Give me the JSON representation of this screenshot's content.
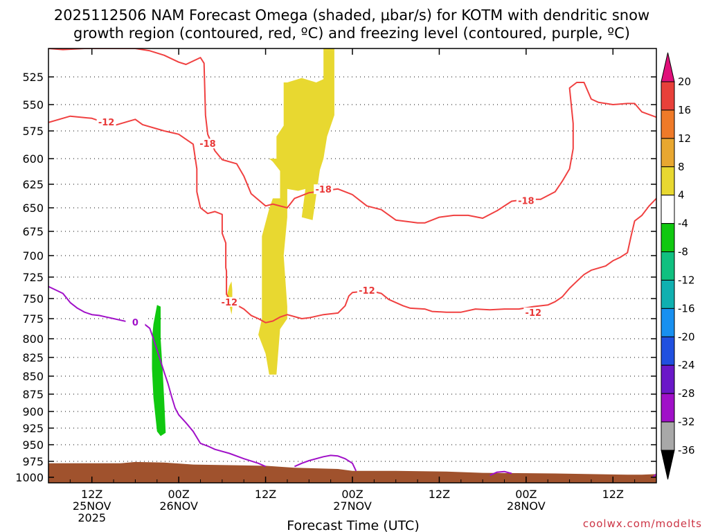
{
  "chart_data": {
    "type": "time-height contour",
    "title_line1": "2025112506 NAM Forecast Omega (shaded, μbar/s) for KOTM with dendritic snow",
    "title_line2": "growth region (contoured, red, ºC) and freezing level (contoured, purple, ºC)",
    "xlabel": "Forecast Time (UTC)",
    "credit": "coolwx.com/modelts",
    "x_range_hours": [
      0,
      84
    ],
    "y_range_mb": [
      500,
      1005
    ],
    "x_ticks": [
      {
        "hour": 6,
        "line1": "12Z",
        "line2": "25NOV",
        "line3": "2025"
      },
      {
        "hour": 18,
        "line1": "00Z",
        "line2": "26NOV",
        "line3": ""
      },
      {
        "hour": 30,
        "line1": "12Z",
        "line2": "",
        "line3": ""
      },
      {
        "hour": 42,
        "line1": "00Z",
        "line2": "27NOV",
        "line3": ""
      },
      {
        "hour": 54,
        "line1": "12Z",
        "line2": "",
        "line3": ""
      },
      {
        "hour": 66,
        "line1": "00Z",
        "line2": "28NOV",
        "line3": ""
      },
      {
        "hour": 78,
        "line1": "12Z",
        "line2": "",
        "line3": ""
      }
    ],
    "y_ticks": [
      525,
      550,
      575,
      600,
      625,
      650,
      675,
      700,
      725,
      750,
      775,
      800,
      825,
      850,
      875,
      900,
      925,
      950,
      975,
      1000
    ],
    "colorbar": {
      "labels": [
        "20",
        "16",
        "12",
        "8",
        "4",
        "-4",
        "-8",
        "-12",
        "-16",
        "-20",
        "-24",
        "-28",
        "-32",
        "-36"
      ],
      "colors": [
        "#e8403a",
        "#ef7a28",
        "#e8a730",
        "#e8d830",
        "#ffffff",
        "#10c810",
        "#10c080",
        "#10b0b0",
        "#1890f0",
        "#2050e0",
        "#6a18c8",
        "#a010c8",
        "#a8a8a8"
      ],
      "top_arrow_color": "#e0107a",
      "bottom_arrow_color": "#000000"
    },
    "contour_labels": [
      {
        "text": "-12",
        "hour": 8,
        "mb": 567,
        "series": "dgz_-12"
      },
      {
        "text": "-18",
        "hour": 22,
        "mb": 587,
        "series": "dgz_-18"
      },
      {
        "text": "-18",
        "hour": 38,
        "mb": 631,
        "series": "dgz_-18"
      },
      {
        "text": "-18",
        "hour": 66,
        "mb": 643,
        "series": "dgz_-18"
      },
      {
        "text": "-12",
        "hour": 25,
        "mb": 755,
        "series": "dgz_-12"
      },
      {
        "text": "-12",
        "hour": 44,
        "mb": 741,
        "series": "dgz_-12"
      },
      {
        "text": "-12",
        "hour": 67,
        "mb": 768,
        "series": "dgz_-12"
      },
      {
        "text": "0",
        "hour": 12,
        "mb": 780,
        "series": "freezing_0"
      }
    ],
    "series": [
      {
        "name": "dgz_-12_upper",
        "color": "#f04040",
        "points": [
          [
            0,
            567
          ],
          [
            3,
            561
          ],
          [
            6,
            563
          ],
          [
            9,
            570
          ],
          [
            11,
            566
          ],
          [
            12,
            564
          ],
          [
            13,
            569
          ],
          [
            16,
            575
          ]
        ]
      },
      {
        "name": "dgz_-18",
        "color": "#f04040",
        "points": [
          [
            0,
            500
          ],
          [
            2,
            501
          ],
          [
            5,
            498
          ],
          [
            9,
            497
          ],
          [
            12,
            500
          ],
          [
            14,
            502
          ],
          [
            16,
            506
          ],
          [
            18,
            512
          ],
          [
            19,
            514
          ],
          [
            21,
            508
          ],
          [
            21.5,
            513
          ],
          [
            21.7,
            560
          ],
          [
            22,
            578
          ],
          [
            23,
            593
          ],
          [
            24,
            601
          ],
          [
            26,
            605
          ],
          [
            27,
            617
          ],
          [
            28,
            635
          ],
          [
            30,
            648
          ],
          [
            31,
            646
          ],
          [
            33,
            650
          ],
          [
            34,
            640
          ],
          [
            36,
            634
          ],
          [
            38,
            632
          ],
          [
            40,
            630
          ],
          [
            42,
            636
          ],
          [
            44,
            648
          ],
          [
            46,
            652
          ],
          [
            48,
            663
          ],
          [
            50,
            665
          ],
          [
            51,
            666
          ],
          [
            52,
            666
          ],
          [
            54,
            660
          ],
          [
            56,
            658
          ],
          [
            58,
            658
          ],
          [
            60,
            661
          ],
          [
            62,
            653
          ],
          [
            64,
            643
          ],
          [
            66,
            641
          ],
          [
            68,
            641
          ],
          [
            70,
            633
          ],
          [
            71,
            622
          ],
          [
            72,
            610
          ],
          [
            72.5,
            591
          ],
          [
            72.5,
            568
          ],
          [
            72.2,
            548
          ],
          [
            72,
            535
          ],
          [
            73,
            530
          ],
          [
            74,
            530
          ],
          [
            75,
            545
          ],
          [
            76,
            548
          ],
          [
            78,
            550
          ],
          [
            80,
            549
          ],
          [
            81,
            549
          ],
          [
            82,
            557
          ],
          [
            84,
            562
          ]
        ]
      },
      {
        "name": "dgz_-18_upper_left",
        "color": "#f04040",
        "points": [
          [
            16,
            575
          ],
          [
            18,
            578
          ],
          [
            20,
            587
          ],
          [
            20.5,
            610
          ],
          [
            20.5,
            633
          ],
          [
            21,
            650
          ],
          [
            22,
            656
          ],
          [
            23,
            654
          ],
          [
            24,
            657
          ],
          [
            24,
            677
          ],
          [
            24.5,
            687
          ],
          [
            24.5,
            714
          ],
          [
            24.6,
            718
          ],
          [
            24.6,
            745
          ],
          [
            25,
            750
          ],
          [
            26,
            758
          ],
          [
            27,
            763
          ],
          [
            28,
            771
          ],
          [
            29,
            775
          ],
          [
            30,
            780
          ],
          [
            31,
            778
          ],
          [
            32,
            773
          ],
          [
            33,
            770
          ],
          [
            35,
            775
          ],
          [
            36,
            774
          ],
          [
            38,
            770
          ],
          [
            40,
            768
          ],
          [
            41,
            759
          ],
          [
            41.5,
            747
          ],
          [
            42,
            743
          ],
          [
            43,
            742
          ],
          [
            44,
            740
          ],
          [
            46,
            744
          ],
          [
            47,
            751
          ],
          [
            49,
            759
          ],
          [
            50,
            762
          ],
          [
            52,
            763
          ],
          [
            53,
            766
          ],
          [
            55,
            767
          ],
          [
            57,
            767
          ],
          [
            59,
            763
          ],
          [
            61,
            764
          ],
          [
            63,
            763
          ],
          [
            65,
            763
          ],
          [
            67,
            760
          ],
          [
            69,
            758
          ],
          [
            70,
            754
          ],
          [
            71,
            748
          ],
          [
            72,
            738
          ],
          [
            73,
            730
          ],
          [
            74,
            722
          ],
          [
            75,
            717
          ],
          [
            77,
            712
          ],
          [
            78,
            706
          ],
          [
            79,
            702
          ],
          [
            80,
            697
          ],
          [
            80.5,
            680
          ],
          [
            81,
            664
          ],
          [
            82,
            658
          ],
          [
            83,
            648
          ],
          [
            84,
            640
          ]
        ]
      },
      {
        "name": "freezing_0",
        "color": "#a010c8",
        "points": [
          [
            0,
            736
          ],
          [
            1,
            740
          ],
          [
            2,
            744
          ],
          [
            3,
            755
          ],
          [
            4,
            762
          ],
          [
            5,
            767
          ],
          [
            6,
            770
          ],
          [
            7,
            771
          ],
          [
            8,
            773
          ],
          [
            9,
            775
          ],
          [
            10,
            777
          ],
          [
            11,
            779
          ],
          [
            12,
            776
          ],
          [
            13,
            780
          ],
          [
            14,
            787
          ],
          [
            14.5,
            800
          ],
          [
            15,
            815
          ],
          [
            15.5,
            830
          ],
          [
            16,
            845
          ],
          [
            16.5,
            860
          ],
          [
            17,
            878
          ],
          [
            17.5,
            895
          ],
          [
            18,
            905
          ],
          [
            19,
            917
          ],
          [
            20,
            930
          ],
          [
            21,
            948
          ],
          [
            22,
            952
          ],
          [
            23,
            957
          ],
          [
            25,
            963
          ],
          [
            27,
            971
          ],
          [
            29,
            978
          ],
          [
            30,
            983
          ]
        ]
      },
      {
        "name": "freezing_0_right",
        "color": "#a010c8",
        "points": [
          [
            34,
            983
          ],
          [
            35,
            978
          ],
          [
            36,
            974
          ],
          [
            38,
            968
          ],
          [
            39,
            966
          ],
          [
            40,
            967
          ],
          [
            41,
            971
          ],
          [
            42,
            978
          ],
          [
            42.5,
            990
          ]
        ]
      },
      {
        "name": "freezing_0_small",
        "color": "#a010c8",
        "points": [
          [
            61,
            997
          ],
          [
            62,
            992
          ],
          [
            63,
            991
          ],
          [
            64,
            994
          ]
        ]
      },
      {
        "name": "freezing_0_edge",
        "color": "#a010c8",
        "points": [
          [
            83.5,
            1000
          ],
          [
            84,
            995
          ]
        ]
      }
    ],
    "omega_regions": [
      {
        "value": "4 to 8",
        "color": "#e8d830",
        "points": [
          [
            30.5,
            651
          ],
          [
            31,
            640
          ],
          [
            32,
            640
          ],
          [
            32,
            612
          ],
          [
            31,
            603
          ],
          [
            30.5,
            600
          ],
          [
            31.5,
            600
          ],
          [
            31.5,
            580
          ],
          [
            32.5,
            570
          ],
          [
            32.5,
            530
          ],
          [
            33,
            530
          ],
          [
            35,
            526
          ],
          [
            37,
            530
          ],
          [
            38,
            527
          ],
          [
            38,
            500
          ],
          [
            39,
            490
          ],
          [
            39.5,
            490
          ],
          [
            39.5,
            560
          ],
          [
            38.5,
            580
          ],
          [
            38,
            600
          ],
          [
            37.5,
            611
          ],
          [
            36.5,
            663
          ],
          [
            35,
            660
          ],
          [
            35.5,
            630
          ],
          [
            34.5,
            632
          ],
          [
            33,
            630
          ],
          [
            33,
            660
          ],
          [
            32.5,
            700
          ],
          [
            33,
            760
          ],
          [
            33,
            775
          ],
          [
            32,
            788
          ],
          [
            31.5,
            848
          ],
          [
            30.5,
            848
          ],
          [
            30,
            820
          ],
          [
            29,
            795
          ],
          [
            29.5,
            775
          ],
          [
            29.5,
            740
          ],
          [
            29.5,
            680
          ]
        ]
      },
      {
        "value": "4 to 8",
        "color": "#e8d830",
        "points": [
          [
            24.5,
            752
          ],
          [
            25,
            735
          ],
          [
            25.3,
            730
          ],
          [
            25.4,
            740
          ],
          [
            25.4,
            762
          ],
          [
            25.3,
            770
          ],
          [
            25,
            758
          ]
        ]
      },
      {
        "value": "-4 to -8",
        "color": "#10c810",
        "points": [
          [
            14.5,
            782
          ],
          [
            15,
            758
          ],
          [
            15.5,
            760
          ],
          [
            15.5,
            800
          ],
          [
            15.8,
            845
          ],
          [
            16,
            885
          ],
          [
            16.2,
            932
          ],
          [
            15.5,
            937
          ],
          [
            15,
            930
          ],
          [
            14.5,
            880
          ],
          [
            14.3,
            840
          ],
          [
            14.3,
            800
          ]
        ]
      }
    ],
    "terrain_color": "#a0522d",
    "terrain_points": [
      [
        0,
        978
      ],
      [
        10,
        978
      ],
      [
        12,
        976
      ],
      [
        16,
        977
      ],
      [
        20,
        980
      ],
      [
        25,
        981
      ],
      [
        30,
        982
      ],
      [
        34,
        985
      ],
      [
        40,
        987
      ],
      [
        42,
        990
      ],
      [
        48,
        990
      ],
      [
        55,
        991
      ],
      [
        60,
        993
      ],
      [
        70,
        994
      ],
      [
        80,
        996
      ],
      [
        82,
        996
      ],
      [
        84,
        995
      ]
    ]
  }
}
